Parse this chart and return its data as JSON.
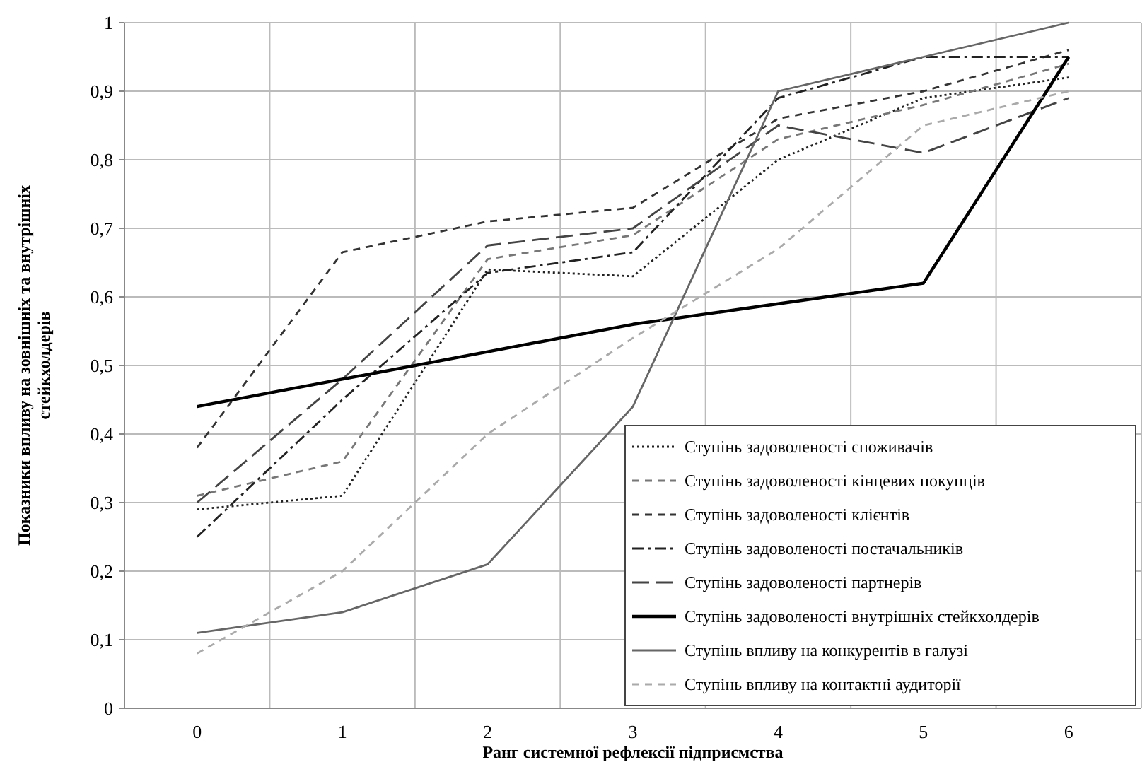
{
  "chart_data": {
    "type": "line",
    "xlabel": "Ранг системної рефлексії підприємства",
    "ylabel": "Показники впливу на зовнішніх та внутрішніх стейкхолдерів",
    "categories": [
      "0",
      "1",
      "2",
      "3",
      "4",
      "5",
      "6"
    ],
    "ylim": [
      0,
      1
    ],
    "yticks": [
      0,
      {
        "value": 0.1,
        "label": "0,1"
      },
      {
        "value": 0.2,
        "label": "0,2"
      },
      {
        "value": 0.3,
        "label": "0,3"
      },
      {
        "value": 0.4,
        "label": "0,4"
      },
      {
        "value": 0.5,
        "label": "0,5"
      },
      {
        "value": 0.6,
        "label": "0,6"
      },
      {
        "value": 0.7,
        "label": "0,7"
      },
      {
        "value": 0.8,
        "label": "0,8"
      },
      {
        "value": 0.9,
        "label": "0,9"
      },
      1
    ],
    "grid": true,
    "legend": "bottom right",
    "series": [
      {
        "name": "Ступінь задоволеності споживачів",
        "color": "#222222",
        "line_style": "dotted",
        "values": [
          0.29,
          0.31,
          0.64,
          0.63,
          0.8,
          0.89,
          0.92
        ]
      },
      {
        "name": "Ступінь задоволеності кінцевих покупців",
        "color": "#777777",
        "line_style": "dashed",
        "values": [
          0.31,
          0.36,
          0.655,
          0.69,
          0.83,
          0.88,
          0.94
        ]
      },
      {
        "name": "Ступінь задоволеності клієнтів",
        "color": "#333333",
        "line_style": "dashed",
        "values": [
          0.38,
          0.665,
          0.71,
          0.73,
          0.86,
          0.9,
          0.96
        ]
      },
      {
        "name": "Ступінь задоволеності постачальників",
        "color": "#222222",
        "line_style": "dash-dot",
        "values": [
          0.25,
          0.45,
          0.635,
          0.665,
          0.89,
          0.95,
          0.95
        ]
      },
      {
        "name": "Ступінь задоволеності партнерів",
        "color": "#444444",
        "line_style": "long-dash",
        "values": [
          0.3,
          0.48,
          0.675,
          0.7,
          0.85,
          0.81,
          0.89
        ]
      },
      {
        "name": "Ступінь задоволеності внутрішніх стейкхолдерів",
        "color": "#000000",
        "line_style": "solid",
        "values": [
          0.44,
          0.48,
          0.52,
          0.56,
          0.59,
          0.62,
          0.95
        ]
      },
      {
        "name": "Ступінь впливу на конкурентів в галузі",
        "color": "#666666",
        "line_style": "solid",
        "values": [
          0.11,
          0.14,
          0.21,
          0.44,
          0.9,
          0.95,
          1.0
        ]
      },
      {
        "name": "Ступінь впливу на контактні аудиторії",
        "color": "#aaaaaa",
        "line_style": "dashed",
        "values": [
          0.08,
          0.2,
          0.4,
          0.54,
          0.67,
          0.85,
          0.9
        ]
      }
    ]
  }
}
